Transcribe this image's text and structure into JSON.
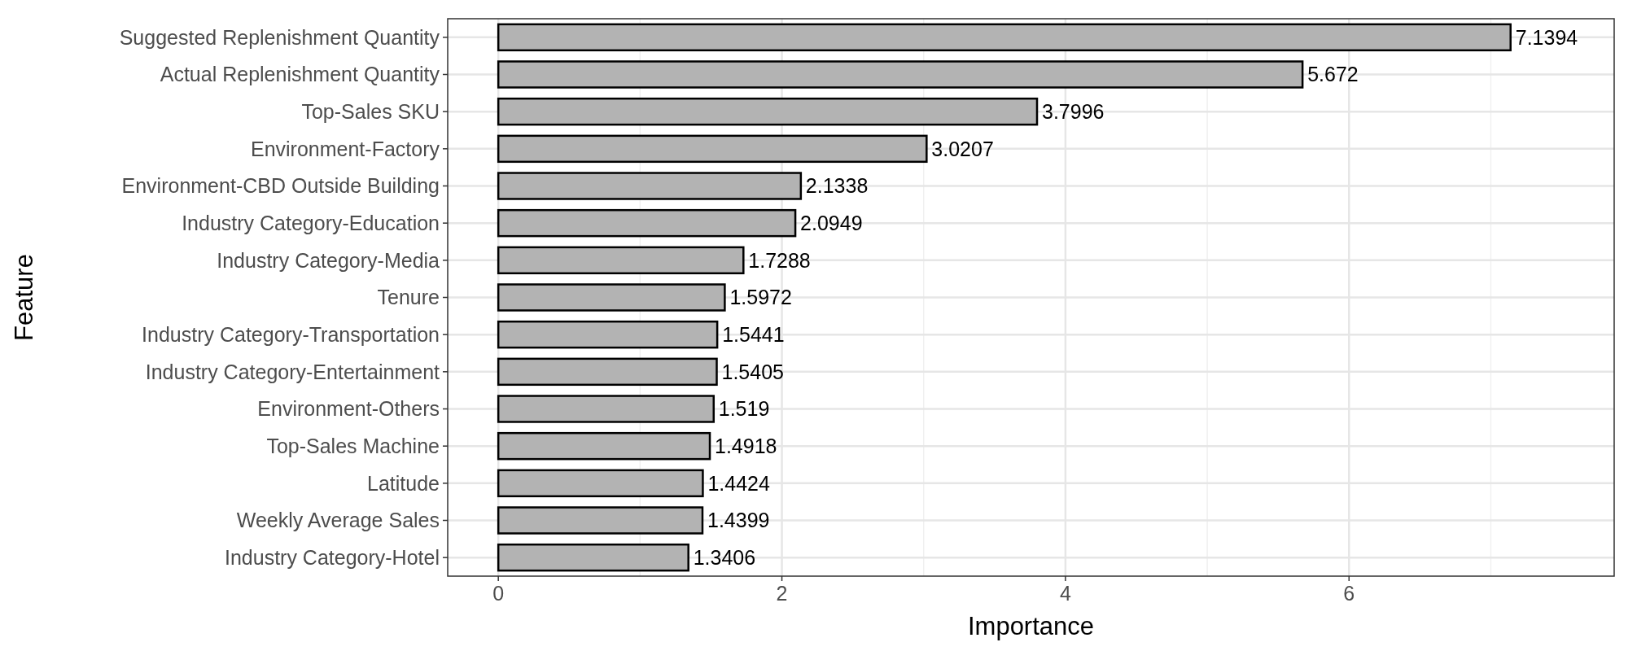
{
  "chart_data": {
    "type": "bar",
    "orientation": "horizontal",
    "xlabel": "Importance",
    "ylabel": "Feature",
    "categories": [
      "Suggested Replenishment Quantity",
      "Actual Replenishment Quantity",
      "Top-Sales SKU",
      "Environment-Factory",
      "Environment-CBD Outside Building",
      "Industry Category-Education",
      "Industry Category-Media",
      "Tenure",
      "Industry Category-Transportation",
      "Industry Category-Entertainment",
      "Environment-Others",
      "Top-Sales Machine",
      "Latitude",
      "Weekly Average Sales",
      "Industry Category-Hotel"
    ],
    "values": [
      7.1394,
      5.672,
      3.7996,
      3.0207,
      2.1338,
      2.0949,
      1.7288,
      1.5972,
      1.5441,
      1.5405,
      1.519,
      1.4918,
      1.4424,
      1.4399,
      1.3406
    ],
    "color": "#b3b3b3",
    "data_labels": true,
    "xlim": [
      -0.357,
      7.87
    ],
    "xticks": [
      0,
      2,
      4,
      6
    ],
    "grid": true
  }
}
